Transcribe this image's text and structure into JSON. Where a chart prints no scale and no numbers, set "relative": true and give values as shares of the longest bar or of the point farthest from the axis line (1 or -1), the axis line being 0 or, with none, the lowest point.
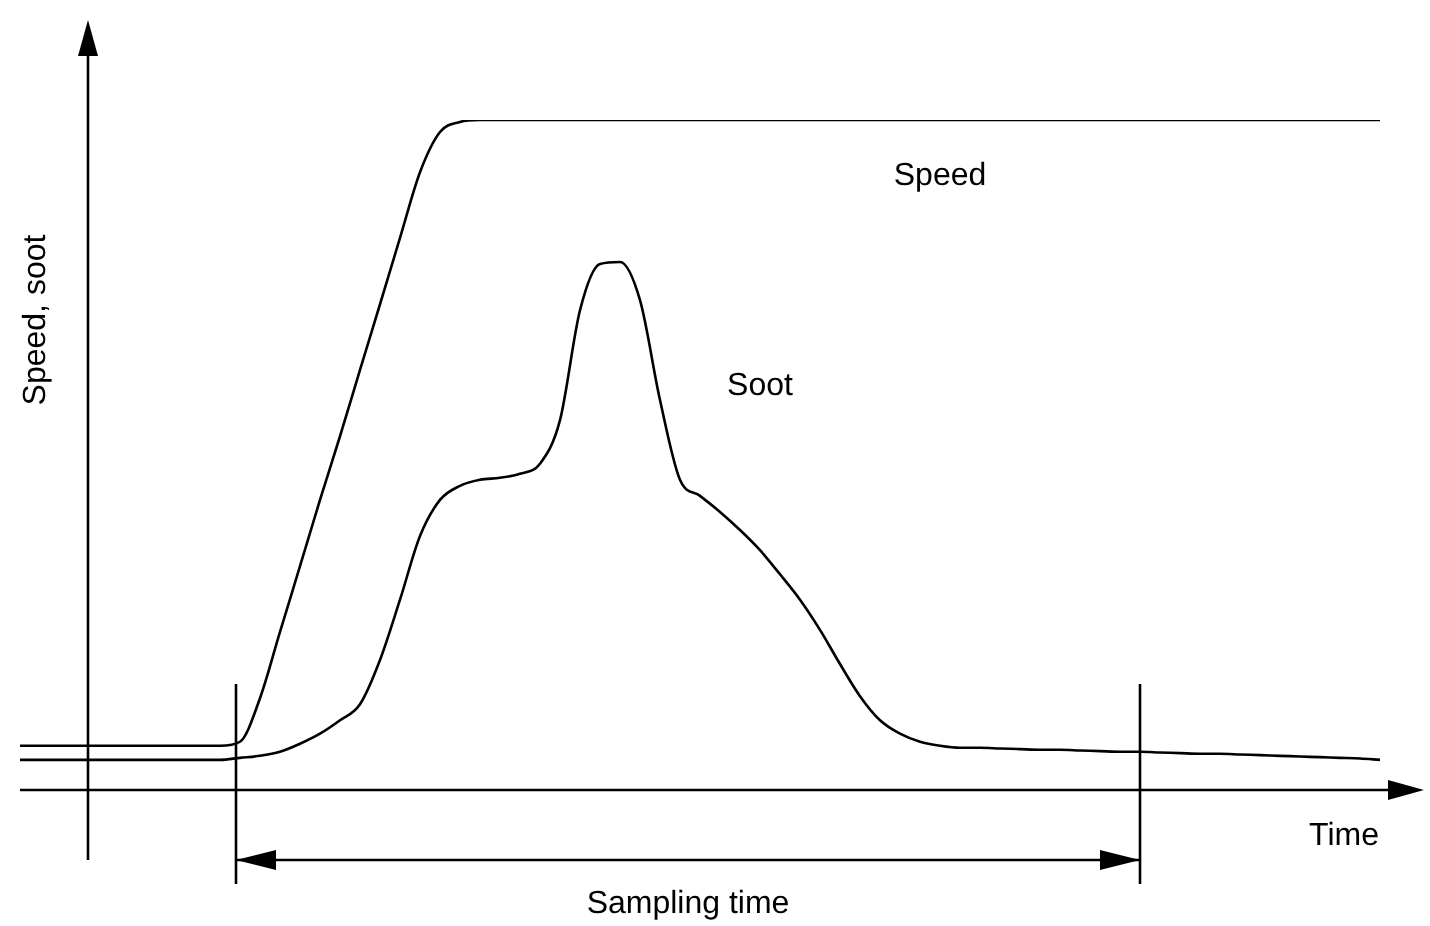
{
  "chart_data": {
    "type": "line",
    "relative": true,
    "xlabel": "Time",
    "ylabel": "Speed, soot",
    "annotations": [
      "Sampling time"
    ],
    "marker": "none",
    "categories": [
      null,
      null,
      null,
      null,
      null,
      null,
      null,
      null,
      null,
      null,
      null,
      null,
      null,
      null,
      null,
      null,
      null,
      null,
      null,
      null,
      null,
      null,
      null,
      null,
      null,
      null,
      null,
      null,
      null,
      null,
      null,
      null,
      null,
      null,
      null,
      null,
      null,
      null,
      null,
      null,
      null,
      null,
      null,
      null,
      null,
      null,
      null,
      null,
      null,
      null,
      null,
      null,
      null,
      null,
      null,
      null,
      null,
      null,
      null,
      null,
      null,
      null,
      null,
      null,
      null,
      null,
      null,
      null,
      null
    ],
    "series": [
      {
        "name": "Speed",
        "color": "#000000",
        "values": [
          0.066,
          0.066,
          0.066,
          0.066,
          0.066,
          0.066,
          0.066,
          0.066,
          0.066,
          0.066,
          0.066,
          0.072,
          0.137,
          0.236,
          0.334,
          0.433,
          0.528,
          0.627,
          0.725,
          0.824,
          0.922,
          0.982,
          0.997,
          1,
          1,
          1,
          1,
          1,
          1,
          1,
          1,
          1,
          1,
          1,
          1,
          1,
          1,
          1,
          1,
          1,
          1,
          1,
          1,
          1,
          1,
          1,
          1,
          1,
          1,
          1,
          1,
          1,
          1,
          1,
          1,
          1,
          1,
          1,
          1,
          1,
          1,
          1,
          1,
          1,
          1,
          1,
          1,
          1,
          1
        ]
      },
      {
        "name": "Soot",
        "color": "#000000",
        "values": [
          0.045,
          0.045,
          0.045,
          0.045,
          0.045,
          0.045,
          0.045,
          0.045,
          0.045,
          0.045,
          0.045,
          0.048,
          0.051,
          0.057,
          0.069,
          0.084,
          0.104,
          0.128,
          0.194,
          0.284,
          0.379,
          0.433,
          0.454,
          0.463,
          0.466,
          0.472,
          0.487,
          0.552,
          0.716,
          0.785,
          0.788,
          0.731,
          0.582,
          0.463,
          0.439,
          0.415,
          0.388,
          0.358,
          0.322,
          0.284,
          0.239,
          0.188,
          0.14,
          0.104,
          0.084,
          0.072,
          0.066,
          0.063,
          0.063,
          0.062,
          0.061,
          0.06,
          0.06,
          0.059,
          0.058,
          0.057,
          0.057,
          0.056,
          0.055,
          0.054,
          0.054,
          0.053,
          0.052,
          0.051,
          0.05,
          0.049,
          0.048,
          0.047,
          0.045
        ]
      }
    ]
  }
}
